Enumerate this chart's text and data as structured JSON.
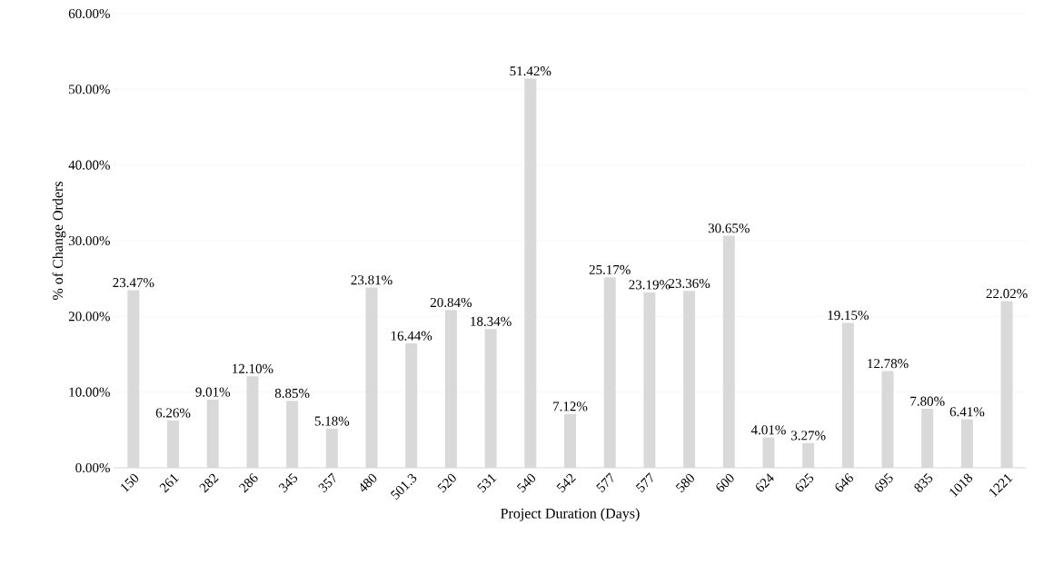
{
  "chart_data": {
    "type": "bar",
    "xlabel": "Project Duration (Days)",
    "ylabel": "% of Change Orders",
    "categories": [
      "150",
      "261",
      "282",
      "286",
      "345",
      "357",
      "480",
      "501.3",
      "520",
      "531",
      "540",
      "542",
      "577",
      "577",
      "580",
      "600",
      "624",
      "625",
      "646",
      "695",
      "835",
      "1018",
      "1221"
    ],
    "values": [
      23.47,
      6.26,
      9.01,
      12.1,
      8.85,
      5.18,
      23.81,
      16.44,
      20.84,
      18.34,
      51.42,
      7.12,
      25.17,
      23.19,
      23.36,
      30.65,
      4.01,
      3.27,
      19.15,
      12.78,
      7.8,
      6.41,
      22.02
    ],
    "value_labels": [
      "23.47%",
      "6.26%",
      "9.01%",
      "12.10%",
      "8.85%",
      "5.18%",
      "23.81%",
      "16.44%",
      "20.84%",
      "18.34%",
      "51.42%",
      "7.12%",
      "25.17%",
      "23.19%",
      "23.36%",
      "30.65%",
      "4.01%",
      "3.27%",
      "19.15%",
      "12.78%",
      "7.80%",
      "6.41%",
      "22.02%"
    ],
    "color": "#d9d9d9",
    "ylim": [
      0,
      60
    ],
    "yticks": [
      {
        "value": 0,
        "label": "0.00%"
      },
      {
        "value": 10,
        "label": "10.00%"
      },
      {
        "value": 20,
        "label": "20.00%"
      },
      {
        "value": 30,
        "label": "30.00%"
      },
      {
        "value": 40,
        "label": "40.00%"
      },
      {
        "value": 50,
        "label": "50.00%"
      },
      {
        "value": 60,
        "label": "60.00%"
      }
    ],
    "grid": "y"
  }
}
